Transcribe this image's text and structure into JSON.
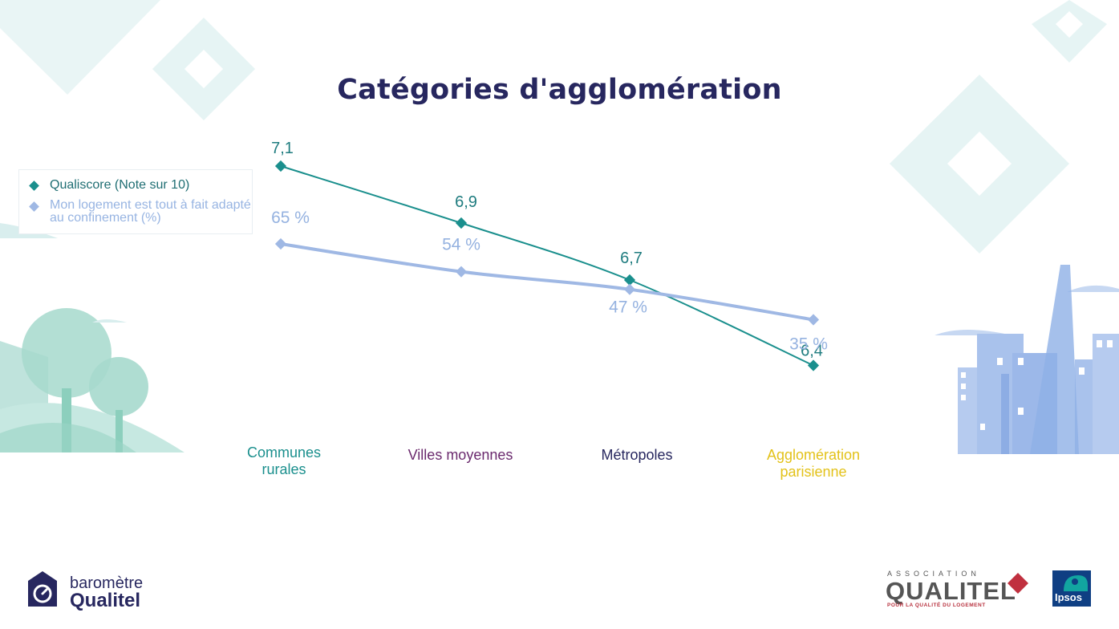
{
  "chart_data": {
    "type": "line",
    "title": "Catégories d'agglomération",
    "categories": [
      "Communes rurales",
      "Villes moyennes",
      "Métropoles",
      "Agglomération parisienne"
    ],
    "series": [
      {
        "name": "Qualiscore (Note sur 10)",
        "values": [
          7.1,
          6.9,
          6.7,
          6.4
        ],
        "data_labels": [
          "7,1",
          "6,9",
          "6,7",
          "6,4"
        ],
        "color": "#1a8f8d"
      },
      {
        "name": "Mon logement est tout à fait adapté au confinement (%)",
        "values": [
          65,
          54,
          47,
          35
        ],
        "data_labels": [
          "65 %",
          "54 %",
          "47 %",
          "35 %"
        ],
        "color": "#9fb8e4"
      }
    ],
    "category_colors": [
      "#1a8f8d",
      "#6b2a6e",
      "#27275f",
      "#e3c21a"
    ],
    "legend_position": "left"
  },
  "brand": {
    "left_top": "baromètre",
    "left_bottom": "Qualitel",
    "right_association": "ASSOCIATION",
    "right_name": "QUALITEL",
    "right_tagline": "POUR LA QUALITÉ DU LOGEMENT",
    "ipsos": "Ipsos"
  },
  "colors": {
    "title": "#27275f",
    "deco_teal": "#e6f4f4",
    "deco_green": "#7cc5b4",
    "deco_blue": "#8fb0e6"
  }
}
